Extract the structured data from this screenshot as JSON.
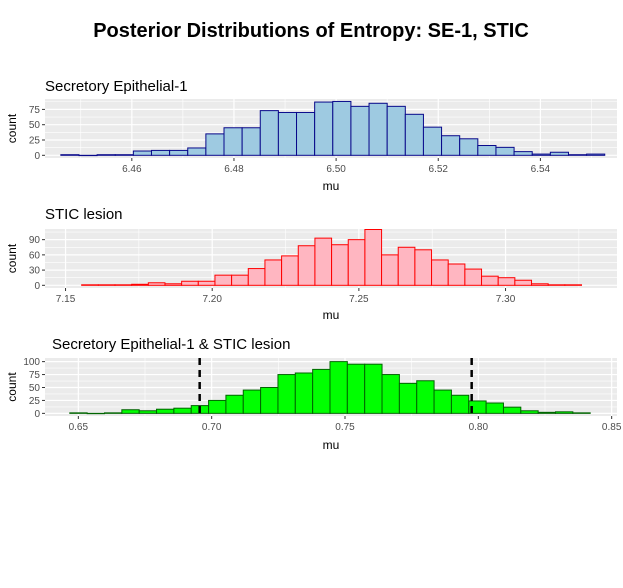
{
  "figure": {
    "title": "Posterior Distributions of Entropy: SE-1, STIC"
  },
  "chart_data": [
    {
      "type": "histogram",
      "title": "Secretory Epithelial-1",
      "xlabel": "mu",
      "ylabel": "count",
      "xlim": [
        6.443,
        6.555
      ],
      "ylim": [
        -4.4,
        92
      ],
      "x_ticks": [
        6.46,
        6.48,
        6.5,
        6.52,
        6.54
      ],
      "x_tick_labels": [
        "6.46",
        "6.48",
        "6.50",
        "6.52",
        "6.54"
      ],
      "y_ticks": [
        0,
        25,
        50,
        75
      ],
      "y_tick_labels": [
        "0",
        "25",
        "50",
        "75"
      ],
      "bin_start": 6.4461,
      "bin_width": 0.00355,
      "counts": [
        1,
        0,
        1,
        1,
        7,
        8,
        8,
        12,
        35,
        45,
        45,
        73,
        70,
        70,
        87,
        88,
        80,
        85,
        80,
        67,
        46,
        32,
        27,
        16,
        13,
        6,
        2,
        5,
        1,
        2
      ],
      "fill": "#9ecae1",
      "stroke": "#08088a",
      "vlines": []
    },
    {
      "type": "histogram",
      "title": "STIC lesion",
      "xlabel": "mu",
      "ylabel": "count",
      "xlim": [
        7.143,
        7.338
      ],
      "ylim": [
        -5.3,
        111
      ],
      "x_ticks": [
        7.15,
        7.2,
        7.25,
        7.3
      ],
      "x_tick_labels": [
        "7.15",
        "7.20",
        "7.25",
        "7.30"
      ],
      "y_ticks": [
        0,
        30,
        60,
        90
      ],
      "y_tick_labels": [
        "0",
        "30",
        "60",
        "90"
      ],
      "bin_start": 7.1555,
      "bin_width": 0.00568,
      "counts": [
        1,
        1,
        1,
        2,
        5,
        3,
        8,
        8,
        20,
        20,
        33,
        50,
        58,
        78,
        93,
        80,
        90,
        110,
        60,
        75,
        70,
        50,
        42,
        32,
        18,
        15,
        10,
        3,
        1,
        1
      ],
      "fill": "#ffb6c1",
      "stroke": "#ff0000",
      "vlines": []
    },
    {
      "type": "histogram",
      "title": "Secretory Epithelial-1 & STIC lesion",
      "xlabel": "mu",
      "ylabel": "count",
      "xlim": [
        0.6375,
        0.852
      ],
      "ylim": [
        -5.1,
        107
      ],
      "x_ticks": [
        0.65,
        0.7,
        0.75,
        0.8,
        0.85
      ],
      "x_tick_labels": [
        "0.65",
        "0.70",
        "0.75",
        "0.80",
        "0.85"
      ],
      "y_ticks": [
        0,
        25,
        50,
        75,
        100
      ],
      "y_tick_labels": [
        "0",
        "25",
        "50",
        "75",
        "100"
      ],
      "bin_start": 0.6468,
      "bin_width": 0.006505,
      "counts": [
        1,
        0,
        1,
        7,
        5,
        8,
        10,
        15,
        25,
        35,
        45,
        50,
        75,
        78,
        85,
        100,
        95,
        95,
        75,
        58,
        63,
        45,
        35,
        24,
        20,
        12,
        5,
        2,
        3,
        1
      ],
      "fill": "#00ff00",
      "stroke": "#006400",
      "vlines": [
        0.6955,
        0.7975
      ]
    }
  ]
}
